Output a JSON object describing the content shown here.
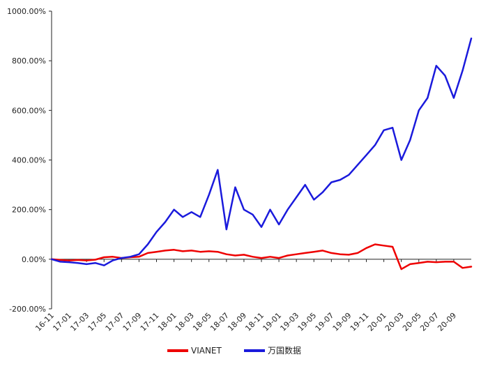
{
  "chart_data": {
    "type": "line",
    "title": "",
    "xlabel": "",
    "ylabel": "",
    "ylim": [
      -200,
      1000
    ],
    "yticks": [
      -200,
      0,
      200,
      400,
      600,
      800,
      1000
    ],
    "ytick_labels": [
      "-200.00%",
      "0.00%",
      "200.00%",
      "400.00%",
      "600.00%",
      "800.00%",
      "1000.00%"
    ],
    "x_start": "16-11",
    "x_end": "20-11",
    "xtick_labels": [
      "16-11",
      "17-01",
      "17-03",
      "17-05",
      "17-07",
      "17-09",
      "17-11",
      "18-01",
      "18-03",
      "18-05",
      "18-07",
      "18-09",
      "18-11",
      "19-01",
      "19-03",
      "19-05",
      "19-07",
      "19-09",
      "19-11",
      "20-01",
      "20-03",
      "20-05",
      "20-07",
      "20-09"
    ],
    "grid": false,
    "legend_position": "bottom",
    "series": [
      {
        "name": "VIANET",
        "color": "#ee0000",
        "points": [
          [
            "16-11",
            0
          ],
          [
            "16-12",
            -3
          ],
          [
            "17-01",
            -5
          ],
          [
            "17-02",
            -3
          ],
          [
            "17-03",
            -5
          ],
          [
            "17-04",
            -2
          ],
          [
            "17-05",
            8
          ],
          [
            "17-06",
            10
          ],
          [
            "17-07",
            5
          ],
          [
            "17-08",
            8
          ],
          [
            "17-09",
            10
          ],
          [
            "17-10",
            25
          ],
          [
            "17-11",
            30
          ],
          [
            "17-12",
            35
          ],
          [
            "18-01",
            38
          ],
          [
            "18-02",
            32
          ],
          [
            "18-03",
            35
          ],
          [
            "18-04",
            30
          ],
          [
            "18-05",
            32
          ],
          [
            "18-06",
            30
          ],
          [
            "18-07",
            20
          ],
          [
            "18-08",
            15
          ],
          [
            "18-09",
            18
          ],
          [
            "18-10",
            10
          ],
          [
            "18-11",
            5
          ],
          [
            "18-12",
            10
          ],
          [
            "19-01",
            5
          ],
          [
            "19-02",
            15
          ],
          [
            "19-03",
            20
          ],
          [
            "19-04",
            25
          ],
          [
            "19-05",
            30
          ],
          [
            "19-06",
            35
          ],
          [
            "19-07",
            25
          ],
          [
            "19-08",
            20
          ],
          [
            "19-09",
            18
          ],
          [
            "19-10",
            25
          ],
          [
            "19-11",
            45
          ],
          [
            "19-12",
            60
          ],
          [
            "20-01",
            55
          ],
          [
            "20-02",
            50
          ],
          [
            "20-03",
            -40
          ],
          [
            "20-04",
            -20
          ],
          [
            "20-05",
            -15
          ],
          [
            "20-06",
            -10
          ],
          [
            "20-07",
            -12
          ],
          [
            "20-08",
            -10
          ],
          [
            "20-09",
            -10
          ],
          [
            "20-10",
            -35
          ],
          [
            "20-11",
            -30
          ]
        ]
      },
      {
        "name": "万国数据",
        "color": "#1a1adc",
        "points": [
          [
            "16-11",
            0
          ],
          [
            "16-12",
            -10
          ],
          [
            "17-01",
            -12
          ],
          [
            "17-02",
            -15
          ],
          [
            "17-03",
            -20
          ],
          [
            "17-04",
            -15
          ],
          [
            "17-05",
            -25
          ],
          [
            "17-06",
            -5
          ],
          [
            "17-07",
            5
          ],
          [
            "17-08",
            10
          ],
          [
            "17-09",
            20
          ],
          [
            "17-10",
            60
          ],
          [
            "17-11",
            110
          ],
          [
            "17-12",
            150
          ],
          [
            "18-01",
            200
          ],
          [
            "18-02",
            170
          ],
          [
            "18-03",
            190
          ],
          [
            "18-04",
            170
          ],
          [
            "18-05",
            260
          ],
          [
            "18-06",
            360
          ],
          [
            "18-07",
            120
          ],
          [
            "18-08",
            290
          ],
          [
            "18-09",
            200
          ],
          [
            "18-10",
            180
          ],
          [
            "18-11",
            130
          ],
          [
            "18-12",
            200
          ],
          [
            "19-01",
            140
          ],
          [
            "19-02",
            200
          ],
          [
            "19-03",
            250
          ],
          [
            "19-04",
            300
          ],
          [
            "19-05",
            240
          ],
          [
            "19-06",
            270
          ],
          [
            "19-07",
            310
          ],
          [
            "19-08",
            320
          ],
          [
            "19-09",
            340
          ],
          [
            "19-10",
            380
          ],
          [
            "19-11",
            420
          ],
          [
            "19-12",
            460
          ],
          [
            "20-01",
            520
          ],
          [
            "20-02",
            530
          ],
          [
            "20-03",
            400
          ],
          [
            "20-04",
            480
          ],
          [
            "20-05",
            600
          ],
          [
            "20-06",
            650
          ],
          [
            "20-07",
            780
          ],
          [
            "20-08",
            740
          ],
          [
            "20-09",
            650
          ],
          [
            "20-10",
            760
          ],
          [
            "20-11",
            890
          ]
        ]
      }
    ]
  }
}
